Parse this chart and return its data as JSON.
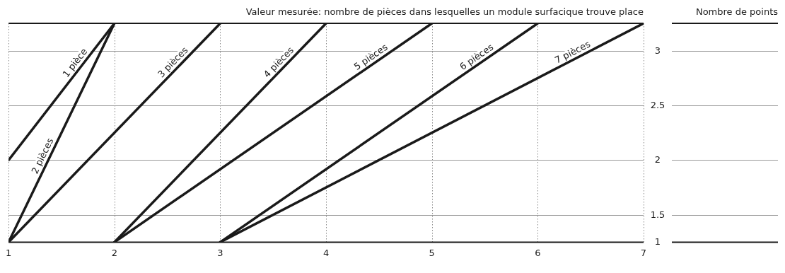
{
  "chart_data": {
    "type": "line",
    "xlabel": "Valeur mesurée: nombre de pièces dans lesquelles un module surfacique trouve place",
    "ylabel": "Nombre de points",
    "xlim": [
      1,
      7
    ],
    "xticks": [
      1,
      2,
      3,
      4,
      5,
      6,
      7
    ],
    "ylim": [
      1.25,
      3.25
    ],
    "yticks": [
      {
        "value": 1.25,
        "label": "1"
      },
      {
        "value": 1.5,
        "label": "1.5"
      },
      {
        "value": 2,
        "label": "2"
      },
      {
        "value": 2.5,
        "label": "2.5"
      },
      {
        "value": 3,
        "label": "3"
      }
    ],
    "grid": true,
    "legend": false,
    "marker": "none",
    "line_style": "solid",
    "series": [
      {
        "name": "1 pièce",
        "color": "#1a1a1a",
        "x": [
          1,
          2
        ],
        "values": [
          2,
          3.25
        ]
      },
      {
        "name": "2 pièces",
        "color": "#1a1a1a",
        "x": [
          1,
          2
        ],
        "values": [
          1.25,
          3.25
        ]
      },
      {
        "name": "3 pièces",
        "color": "#1a1a1a",
        "x": [
          1,
          3
        ],
        "values": [
          1.25,
          3.25
        ]
      },
      {
        "name": "4 pièces",
        "color": "#1a1a1a",
        "x": [
          2,
          4
        ],
        "values": [
          1.25,
          3.25
        ]
      },
      {
        "name": "5 pièces",
        "color": "#1a1a1a",
        "x": [
          2,
          5
        ],
        "values": [
          1.25,
          3.25
        ]
      },
      {
        "name": "6 pièces",
        "color": "#1a1a1a",
        "x": [
          3,
          6
        ],
        "values": [
          1.25,
          3.25
        ]
      },
      {
        "name": "7 pièces",
        "color": "#1a1a1a",
        "x": [
          3,
          7
        ],
        "values": [
          1.25,
          3.25
        ]
      }
    ]
  }
}
